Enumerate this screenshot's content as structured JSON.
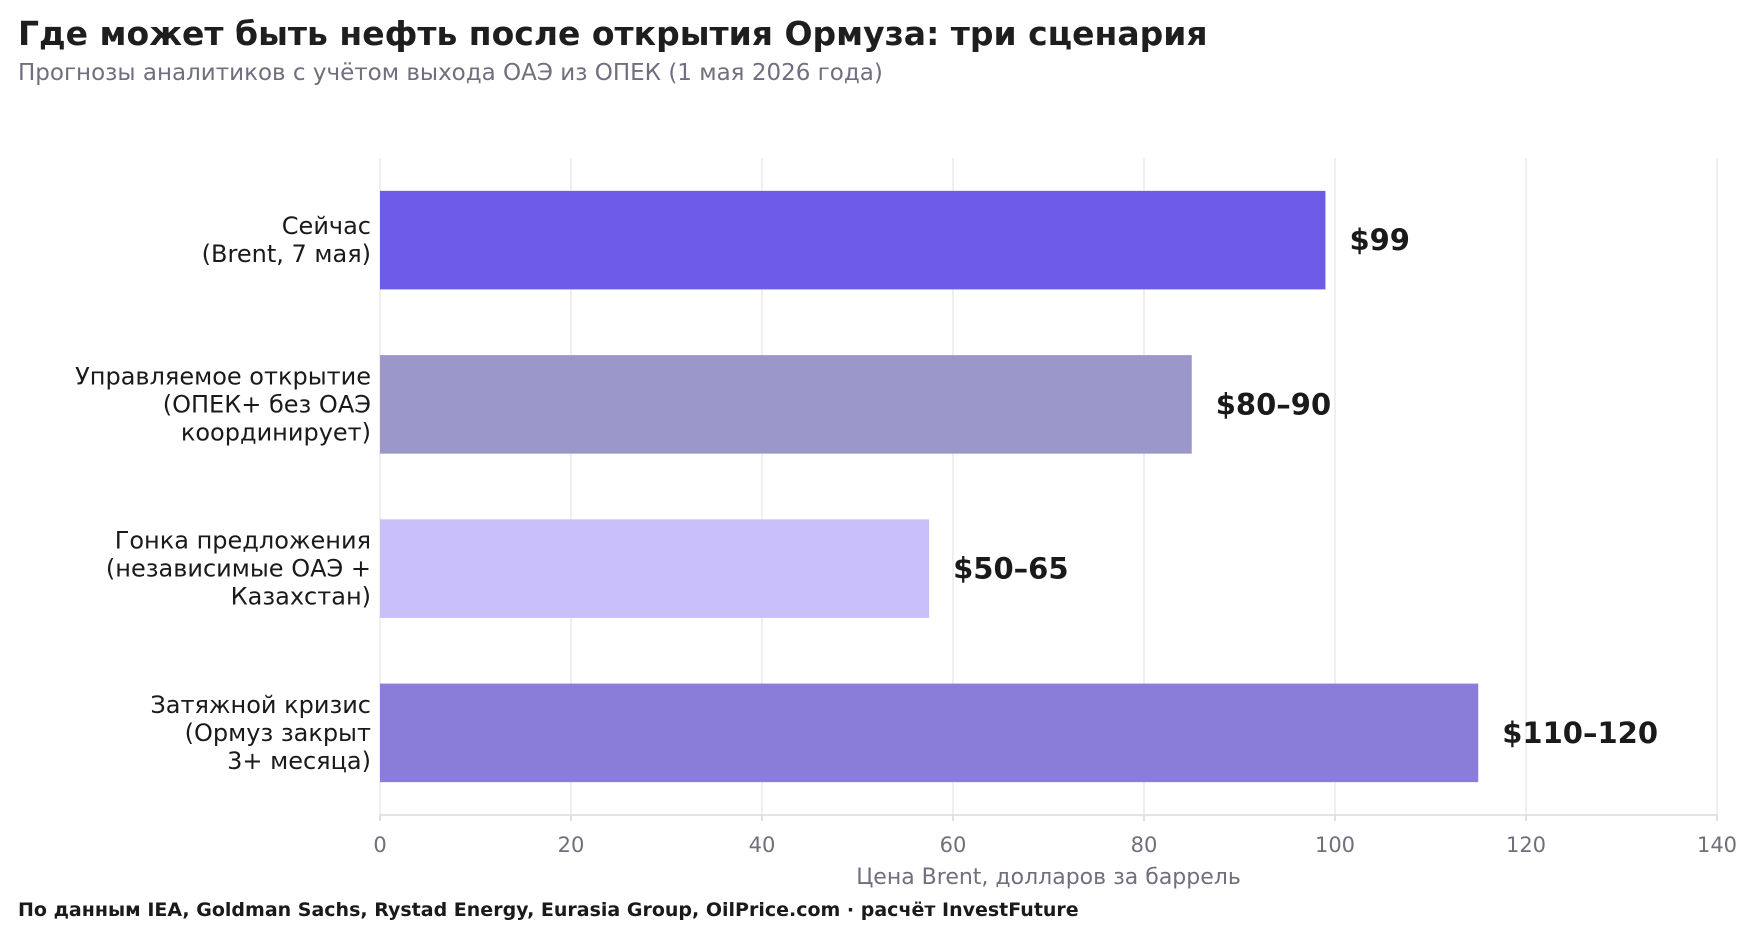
{
  "chart_data": {
    "type": "bar",
    "orientation": "horizontal",
    "title": "Где может быть нефть после открытия Ормуза: три сценария",
    "subtitle": "Прогнозы аналитиков с учётом выхода ОАЭ из ОПЕК (1 мая 2026 года)",
    "categories": [
      [
        "Сейчас",
        "(Brent, 7 мая)"
      ],
      [
        "Управляемое открытие",
        "(ОПЕК+ без ОАЭ",
        "координирует)"
      ],
      [
        "Гонка предложения",
        "(независимые ОАЭ +",
        "Казахстан)"
      ],
      [
        "Затяжной кризис",
        "(Ормуз закрыт",
        "3+ месяца)"
      ]
    ],
    "values": [
      99,
      85,
      57.5,
      115
    ],
    "value_labels": [
      "$99",
      "$80–90",
      "$50–65",
      "$110–120"
    ],
    "colors": [
      "#6c5ce7",
      "#9b97ca",
      "#c9c0fa",
      "#8a7cd9"
    ],
    "xlabel": "Цена Brent, долларов за баррель",
    "ylabel": "",
    "xlim": [
      0,
      140
    ],
    "xticks": [
      0,
      20,
      40,
      60,
      80,
      100,
      120,
      140
    ],
    "grid": true,
    "legend": "none"
  },
  "source": "По данным IEA, Goldman Sachs, Rystad Energy, Eurasia Group, OilPrice.com · расчёт InvestFuture"
}
